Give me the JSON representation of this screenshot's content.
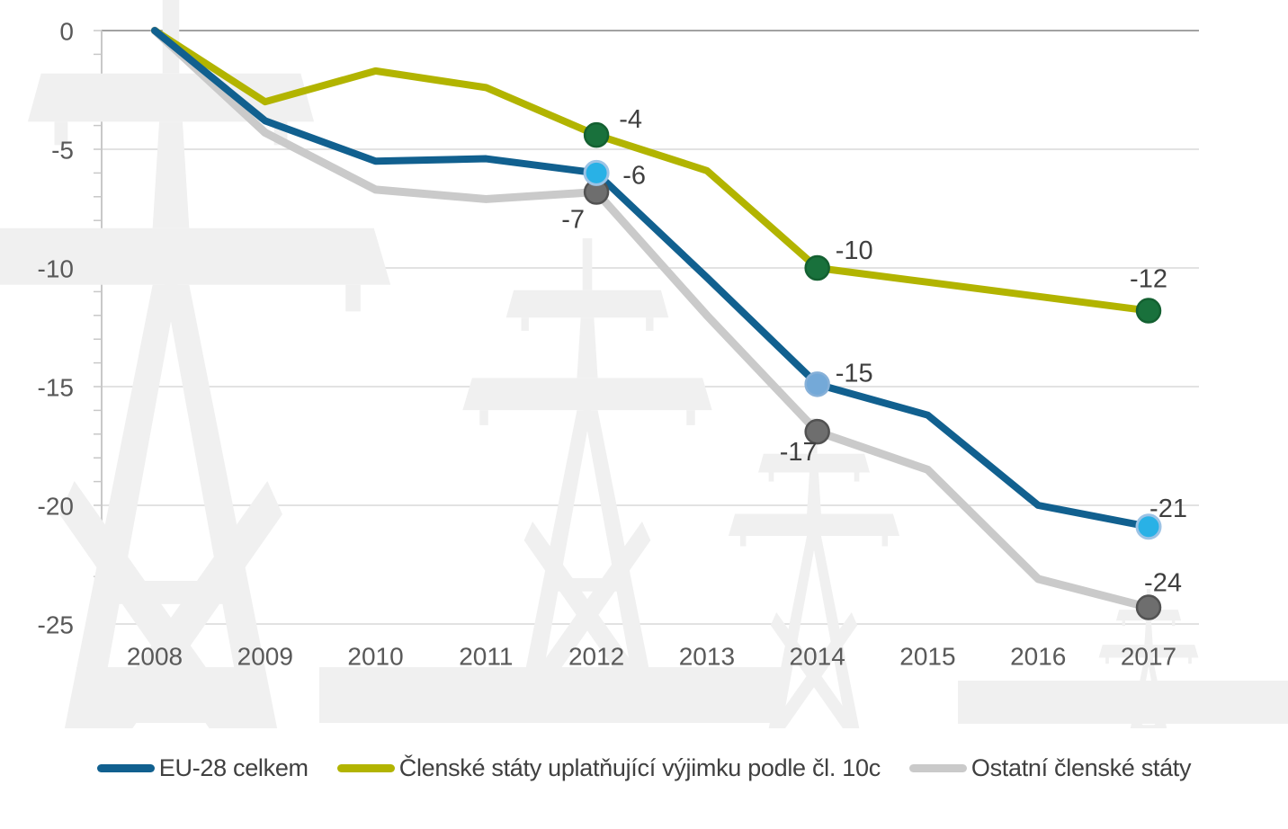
{
  "watermark": {
    "icon": "electricity-pylon-silhouettes"
  },
  "chart_data": {
    "type": "line",
    "title": "",
    "xlabel": "",
    "ylabel": "",
    "categories": [
      "2008",
      "2009",
      "2010",
      "2011",
      "2012",
      "2013",
      "2014",
      "2015",
      "2016",
      "2017"
    ],
    "ylim": [
      -25,
      0
    ],
    "yticks": [
      0,
      -5,
      -10,
      -15,
      -20,
      -25
    ],
    "minor_tick_step": 1,
    "grid": "horizontal",
    "legend_position": "bottom",
    "series": [
      {
        "name": "EU-28 celkem",
        "color": "#11608f",
        "line_width": 8,
        "values": [
          0,
          -3.8,
          -5.5,
          -5.4,
          -6.0,
          -10.4,
          -14.9,
          -16.2,
          -20.0,
          -20.9
        ],
        "annotations": [
          {
            "category": "2012",
            "label": "-6",
            "marker_fill": "#29b1e6",
            "marker_stroke": "#9cc3e5",
            "marker_stroke_width": 3,
            "dx": 42,
            "dy": 3
          },
          {
            "category": "2014",
            "label": "-15",
            "marker_fill": "#74a9d8",
            "marker_stroke": "#86b0d8",
            "marker_stroke_width": 2.5,
            "dx": 41,
            "dy": -12
          },
          {
            "category": "2017",
            "label": "-21",
            "marker_fill": "#29b1e6",
            "marker_stroke": "#9cc3e5",
            "marker_stroke_width": 3,
            "dx": 22,
            "dy": -20
          }
        ]
      },
      {
        "name": "Členské státy uplatňující výjimku podle čl. 10c",
        "color": "#b2b400",
        "line_width": 8,
        "values": [
          0,
          -3.0,
          -1.7,
          -2.4,
          -4.4,
          -5.9,
          -10.0,
          -10.6,
          -11.2,
          -11.8
        ],
        "annotations": [
          {
            "category": "2012",
            "label": "-4",
            "marker_fill": "#19713c",
            "marker_stroke": "#146031",
            "marker_stroke_width": 2.5,
            "dx": 38,
            "dy": -17
          },
          {
            "category": "2014",
            "label": "-10",
            "marker_fill": "#19713c",
            "marker_stroke": "#146031",
            "marker_stroke_width": 2.5,
            "dx": 41,
            "dy": -19
          },
          {
            "category": "2017",
            "label": "-12",
            "marker_fill": "#19713c",
            "marker_stroke": "#146031",
            "marker_stroke_width": 2.5,
            "dx": 0,
            "dy": -35
          }
        ]
      },
      {
        "name": "Ostatní členské státy",
        "color": "#cacaca",
        "line_width": 9,
        "values": [
          0,
          -4.3,
          -6.7,
          -7.1,
          -6.8,
          -12.0,
          -16.9,
          -18.5,
          -23.1,
          -24.3
        ],
        "annotations": [
          {
            "category": "2012",
            "label": "-7",
            "marker_fill": "#6e6e6e",
            "marker_stroke": "#525252",
            "marker_stroke_width": 2.5,
            "dx": -26,
            "dy": 31
          },
          {
            "category": "2014",
            "label": "-17",
            "marker_fill": "#6e6e6e",
            "marker_stroke": "#525252",
            "marker_stroke_width": 2.5,
            "dx": -21,
            "dy": 23
          },
          {
            "category": "2017",
            "label": "-24",
            "marker_fill": "#6e6e6e",
            "marker_stroke": "#525252",
            "marker_stroke_width": 2.5,
            "dx": 16,
            "dy": -27
          }
        ]
      }
    ],
    "style": {
      "gridline_color": "#d9d9d9",
      "zero_line_color": "#a2a2a2",
      "axis_line_color": "#c8c8c8",
      "axis_label_color": "#595959",
      "data_label_color": "#3f3f3f",
      "watermark_color": "#f0f0f0"
    }
  }
}
